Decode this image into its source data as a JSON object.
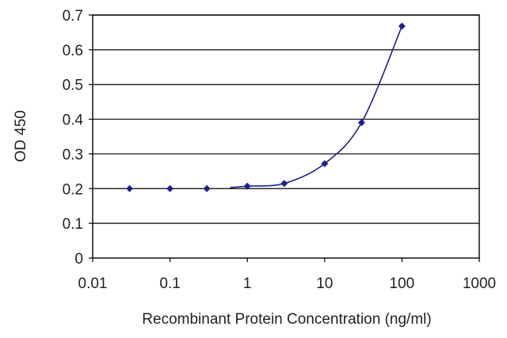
{
  "chart_data": {
    "type": "scatter",
    "title": "",
    "xlabel": "Recombinant Protein Concentration (ng/ml)",
    "ylabel": "OD 450",
    "x_scale": "log",
    "xlim": [
      0.01,
      1000
    ],
    "ylim": [
      0,
      0.7
    ],
    "x_ticks": [
      0.01,
      0.1,
      1,
      10,
      100,
      1000
    ],
    "x_tick_labels": [
      "0.01",
      "0.1",
      "1",
      "10",
      "100",
      "1000"
    ],
    "y_ticks": [
      0,
      0.1,
      0.2,
      0.3,
      0.4,
      0.5,
      0.6,
      0.7
    ],
    "y_tick_labels": [
      "0",
      "0.1",
      "0.2",
      "0.3",
      "0.4",
      "0.5",
      "0.6",
      "0.7"
    ],
    "grid": "horizontal",
    "legend": "none",
    "series": [
      {
        "x": [
          0.03,
          0.1,
          0.3,
          1,
          3,
          10,
          30,
          100
        ],
        "y": [
          0.2,
          0.2,
          0.2,
          0.207,
          0.215,
          0.272,
          0.39,
          0.668
        ],
        "fit_curve": true
      }
    ],
    "colors": {
      "series": "#1f1f8f",
      "grid": "#000000",
      "axis": "#000000"
    }
  }
}
